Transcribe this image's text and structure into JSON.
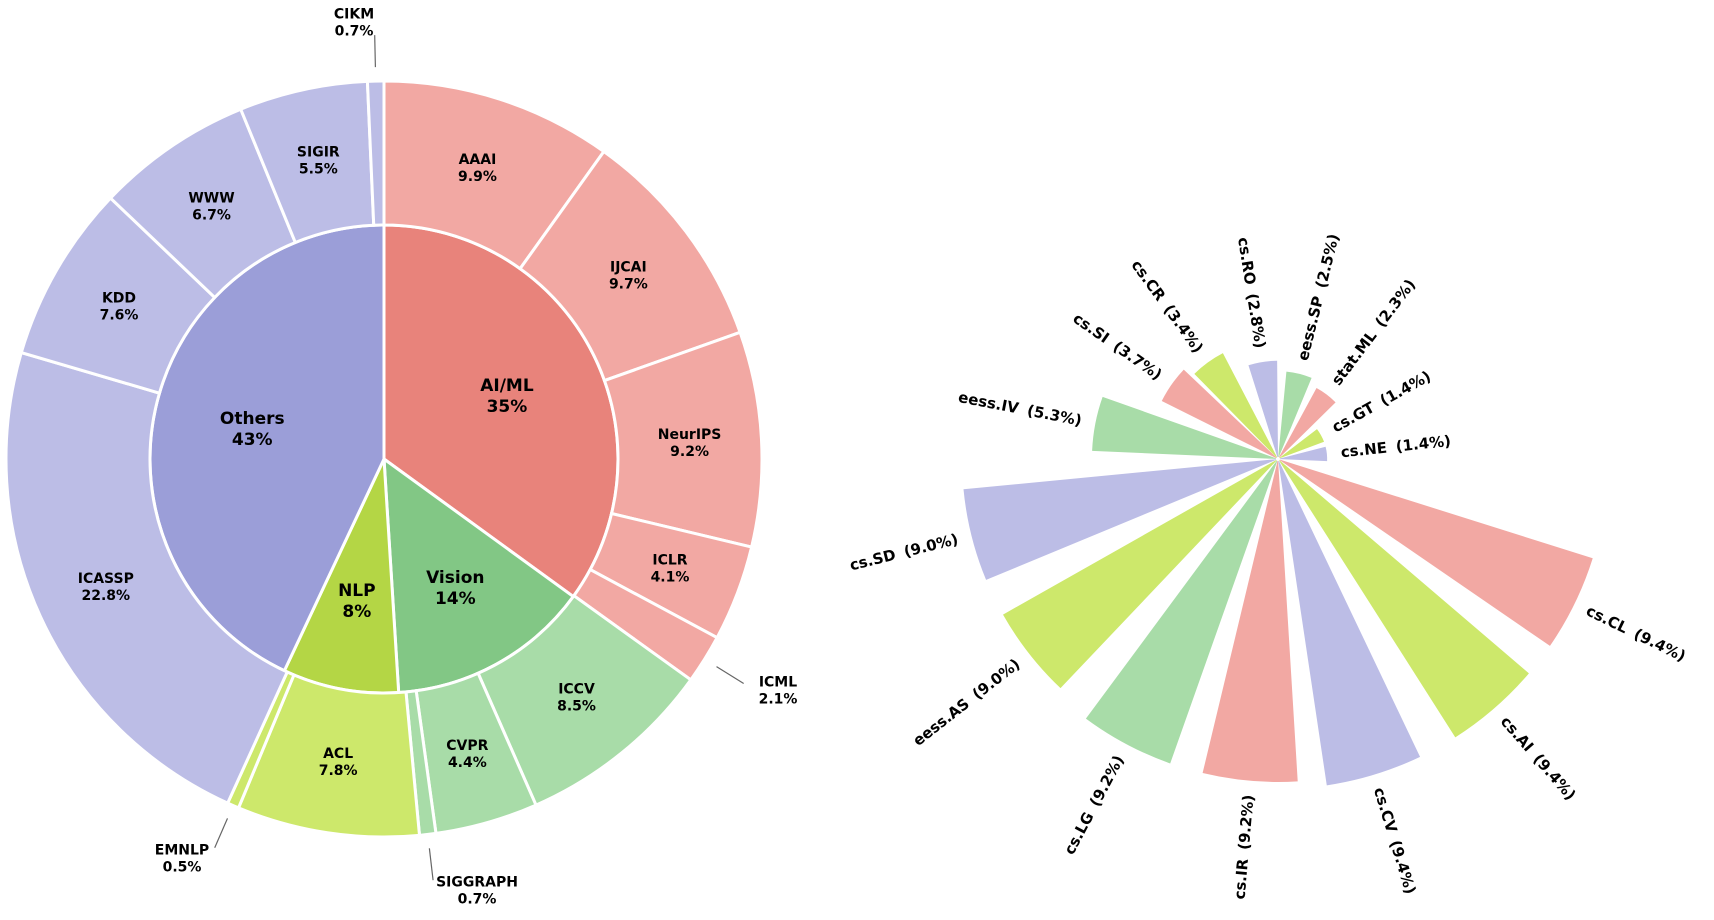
{
  "chart_data": [
    {
      "type": "pie",
      "subtype": "sunburst",
      "inner": [
        {
          "name": "AI/ML",
          "percent": 35,
          "label": "35%",
          "color": "#e8837b"
        },
        {
          "name": "Vision",
          "percent": 14,
          "label": "14%",
          "color": "#82c785"
        },
        {
          "name": "NLP",
          "percent": 8,
          "label": "8%",
          "color": "#b4d645"
        },
        {
          "name": "Others",
          "percent": 43,
          "label": "43%",
          "color": "#9b9ed8"
        }
      ],
      "outer": [
        {
          "name": "AAAI",
          "value": 9.9,
          "label": "9.9%",
          "group": "AI/ML",
          "color": "#f2a8a3"
        },
        {
          "name": "IJCAI",
          "value": 9.7,
          "label": "9.7%",
          "group": "AI/ML",
          "color": "#f2a8a3"
        },
        {
          "name": "NeurIPS",
          "value": 9.2,
          "label": "9.2%",
          "group": "AI/ML",
          "color": "#f2a8a3"
        },
        {
          "name": "ICLR",
          "value": 4.1,
          "label": "4.1%",
          "group": "AI/ML",
          "color": "#f2a8a3"
        },
        {
          "name": "ICML",
          "value": 2.1,
          "label": "2.1%",
          "group": "AI/ML",
          "color": "#f2a8a3",
          "callout": true
        },
        {
          "name": "ICCV",
          "value": 8.5,
          "label": "8.5%",
          "group": "Vision",
          "color": "#a8dca8"
        },
        {
          "name": "CVPR",
          "value": 4.4,
          "label": "4.4%",
          "group": "Vision",
          "color": "#a8dca8"
        },
        {
          "name": "SIGGRAPH",
          "value": 0.7,
          "label": "0.7%",
          "group": "Vision",
          "color": "#a8dca8",
          "callout": true
        },
        {
          "name": "ACL",
          "value": 7.8,
          "label": "7.8%",
          "group": "NLP",
          "color": "#cde86b"
        },
        {
          "name": "EMNLP",
          "value": 0.5,
          "label": "0.5%",
          "group": "NLP",
          "color": "#cde86b",
          "callout": true
        },
        {
          "name": "ICASSP",
          "value": 22.8,
          "label": "22.8%",
          "group": "Others",
          "color": "#bcbde6"
        },
        {
          "name": "KDD",
          "value": 7.6,
          "label": "7.6%",
          "group": "Others",
          "color": "#bcbde6"
        },
        {
          "name": "WWW",
          "value": 6.7,
          "label": "6.7%",
          "group": "Others",
          "color": "#bcbde6"
        },
        {
          "name": "SIGIR",
          "value": 5.5,
          "label": "5.5%",
          "group": "Others",
          "color": "#bcbde6"
        },
        {
          "name": "CIKM",
          "value": 0.7,
          "label": "0.7%",
          "group": "Others",
          "color": "#bcbde6",
          "callout": true
        }
      ]
    },
    {
      "type": "bar",
      "subtype": "polar",
      "categories": [
        "cs.CL",
        "cs.AI",
        "cs.CV",
        "cs.IR",
        "cs.LG",
        "eess.AS",
        "cs.SD",
        "eess.IV",
        "cs.SI",
        "cs.CR",
        "cs.RO",
        "eess.SP",
        "stat.ML",
        "cs.GT",
        "cs.NE"
      ],
      "values": [
        9.4,
        9.4,
        9.4,
        9.2,
        9.2,
        9.0,
        9.0,
        5.3,
        3.7,
        3.4,
        2.8,
        2.5,
        2.3,
        1.4,
        1.4
      ],
      "value_labels": [
        "(9.4%)",
        "(9.4%)",
        "(9.4%)",
        "(9.2%)",
        "(9.2%)",
        "(9.0%)",
        "(9.0%)",
        "(5.3%)",
        "(3.7%)",
        "(3.4%)",
        "(2.8%)",
        "(2.5%)",
        "(2.3%)",
        "(1.4%)",
        "(1.4%)"
      ],
      "colors": [
        "#f2a8a3",
        "#cde86b",
        "#bcbde6",
        "#f2a8a3",
        "#a8dca8",
        "#cde86b",
        "#bcbde6",
        "#a8dca8",
        "#f2a8a3",
        "#cde86b",
        "#bcbde6",
        "#a8dca8",
        "#f2a8a3",
        "#cde86b",
        "#bcbde6"
      ]
    }
  ]
}
